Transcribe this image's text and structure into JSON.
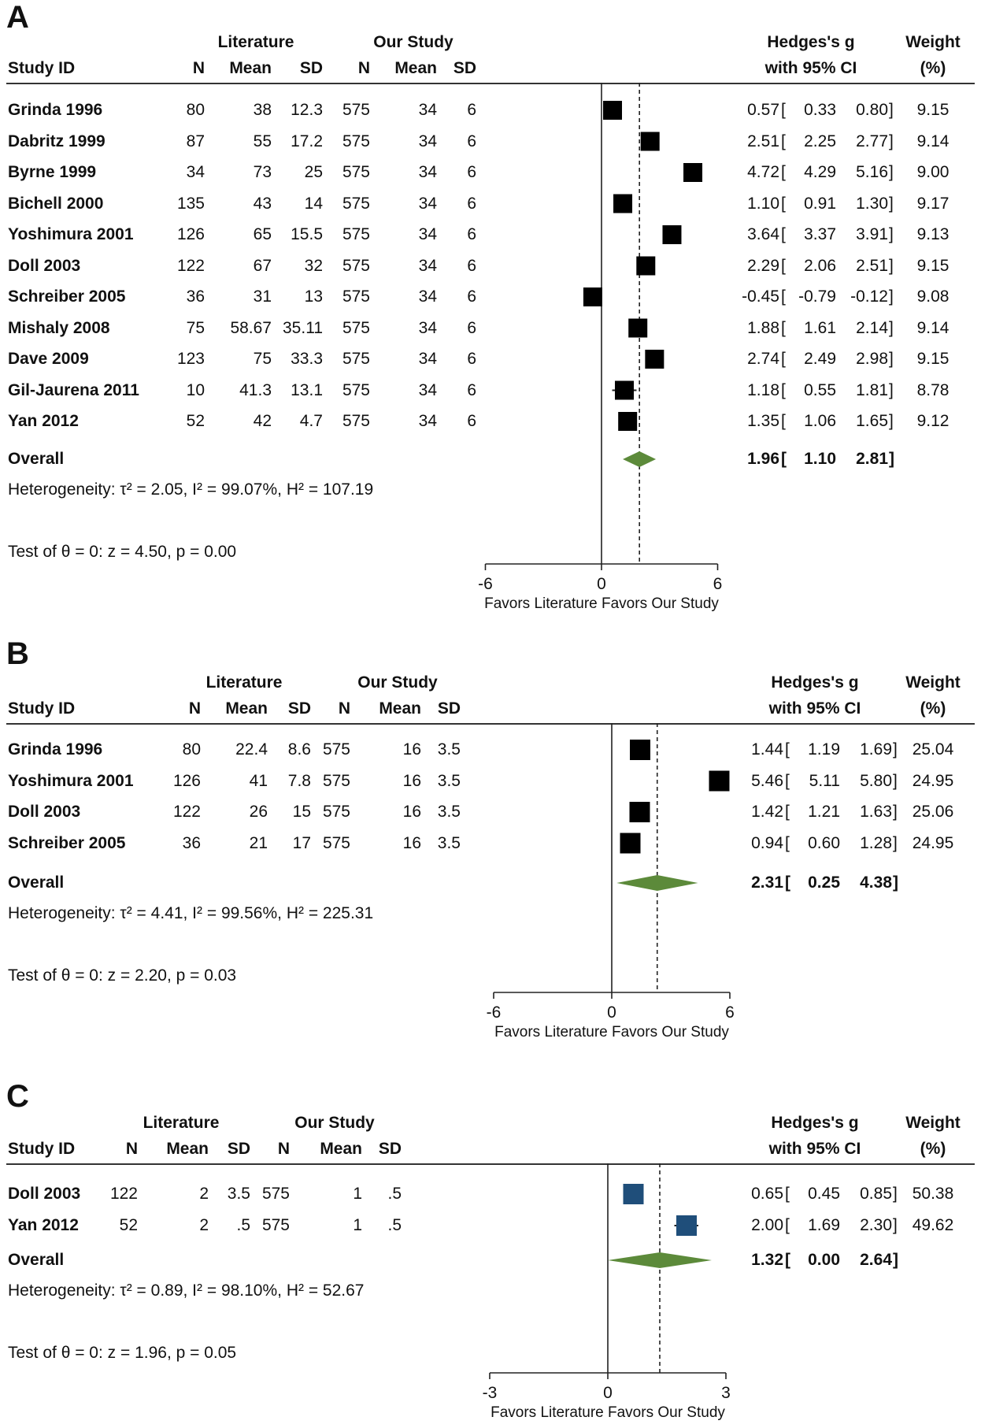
{
  "panels": [
    {
      "label": "A",
      "headers": {
        "study_id": "Study ID",
        "literature": "Literature",
        "our_study": "Our Study",
        "n": "N",
        "mean": "Mean",
        "sd": "SD",
        "effect_line1": "Hedges's g",
        "effect_line2": "with 95% CI",
        "weight_line1": "Weight",
        "weight_line2": "(%)"
      },
      "studies": [
        {
          "id": "Grinda 1996",
          "lit_n": "80",
          "lit_mean": "38",
          "lit_sd": "12.3",
          "our_n": "575",
          "our_mean": "34",
          "our_sd": "6",
          "g": "0.57",
          "lo": "0.33",
          "hi": "0.80",
          "weight": "9.15"
        },
        {
          "id": "Dabritz 1999",
          "lit_n": "87",
          "lit_mean": "55",
          "lit_sd": "17.2",
          "our_n": "575",
          "our_mean": "34",
          "our_sd": "6",
          "g": "2.51",
          "lo": "2.25",
          "hi": "2.77",
          "weight": "9.14"
        },
        {
          "id": "Byrne 1999",
          "lit_n": "34",
          "lit_mean": "73",
          "lit_sd": "25",
          "our_n": "575",
          "our_mean": "34",
          "our_sd": "6",
          "g": "4.72",
          "lo": "4.29",
          "hi": "5.16",
          "weight": "9.00"
        },
        {
          "id": "Bichell 2000",
          "lit_n": "135",
          "lit_mean": "43",
          "lit_sd": "14",
          "our_n": "575",
          "our_mean": "34",
          "our_sd": "6",
          "g": "1.10",
          "lo": "0.91",
          "hi": "1.30",
          "weight": "9.17"
        },
        {
          "id": "Yoshimura 2001",
          "lit_n": "126",
          "lit_mean": "65",
          "lit_sd": "15.5",
          "our_n": "575",
          "our_mean": "34",
          "our_sd": "6",
          "g": "3.64",
          "lo": "3.37",
          "hi": "3.91",
          "weight": "9.13"
        },
        {
          "id": "Doll 2003",
          "lit_n": "122",
          "lit_mean": "67",
          "lit_sd": "32",
          "our_n": "575",
          "our_mean": "34",
          "our_sd": "6",
          "g": "2.29",
          "lo": "2.06",
          "hi": "2.51",
          "weight": "9.15"
        },
        {
          "id": "Schreiber 2005",
          "lit_n": "36",
          "lit_mean": "31",
          "lit_sd": "13",
          "our_n": "575",
          "our_mean": "34",
          "our_sd": "6",
          "g": "-0.45",
          "lo": "-0.79",
          "hi": "-0.12",
          "weight": "9.08"
        },
        {
          "id": "Mishaly 2008",
          "lit_n": "75",
          "lit_mean": "58.67",
          "lit_sd": "35.11",
          "our_n": "575",
          "our_mean": "34",
          "our_sd": "6",
          "g": "1.88",
          "lo": "1.61",
          "hi": "2.14",
          "weight": "9.14"
        },
        {
          "id": "Dave 2009",
          "lit_n": "123",
          "lit_mean": "75",
          "lit_sd": "33.3",
          "our_n": "575",
          "our_mean": "34",
          "our_sd": "6",
          "g": "2.74",
          "lo": "2.49",
          "hi": "2.98",
          "weight": "9.15"
        },
        {
          "id": "Gil-Jaurena 2011",
          "lit_n": "10",
          "lit_mean": "41.3",
          "lit_sd": "13.1",
          "our_n": "575",
          "our_mean": "34",
          "our_sd": "6",
          "g": "1.18",
          "lo": "0.55",
          "hi": "1.81",
          "weight": "8.78"
        },
        {
          "id": "Yan 2012",
          "lit_n": "52",
          "lit_mean": "42",
          "lit_sd": "4.7",
          "our_n": "575",
          "our_mean": "34",
          "our_sd": "6",
          "g": "1.35",
          "lo": "1.06",
          "hi": "1.65",
          "weight": "9.12"
        }
      ],
      "overall": {
        "label": "Overall",
        "g": "1.96",
        "lo": "1.10",
        "hi": "2.81"
      },
      "heterogeneity": "Heterogeneity: τ² = 2.05, I² = 99.07%, H² = 107.19",
      "test": "Test of θ = 0: z = 4.50, p = 0.00",
      "axis": {
        "min": -6,
        "max": 6,
        "ticks": [
          "-6",
          "0",
          "6"
        ],
        "label": "Favors Literature Favors Our Study"
      },
      "marker_color": "#000000"
    },
    {
      "label": "B",
      "headers": {
        "study_id": "Study ID",
        "literature": "Literature",
        "our_study": "Our Study",
        "n": "N",
        "mean": "Mean",
        "sd": "SD",
        "effect_line1": "Hedges's g",
        "effect_line2": "with 95% CI",
        "weight_line1": "Weight",
        "weight_line2": "(%)"
      },
      "studies": [
        {
          "id": "Grinda 1996",
          "lit_n": "80",
          "lit_mean": "22.4",
          "lit_sd": "8.6",
          "our_n": "575",
          "our_mean": "16",
          "our_sd": "3.5",
          "g": "1.44",
          "lo": "1.19",
          "hi": "1.69",
          "weight": "25.04"
        },
        {
          "id": "Yoshimura 2001",
          "lit_n": "126",
          "lit_mean": "41",
          "lit_sd": "7.8",
          "our_n": "575",
          "our_mean": "16",
          "our_sd": "3.5",
          "g": "5.46",
          "lo": "5.11",
          "hi": "5.80",
          "weight": "24.95"
        },
        {
          "id": "Doll 2003",
          "lit_n": "122",
          "lit_mean": "26",
          "lit_sd": "15",
          "our_n": "575",
          "our_mean": "16",
          "our_sd": "3.5",
          "g": "1.42",
          "lo": "1.21",
          "hi": "1.63",
          "weight": "25.06"
        },
        {
          "id": "Schreiber 2005",
          "lit_n": "36",
          "lit_mean": "21",
          "lit_sd": "17",
          "our_n": "575",
          "our_mean": "16",
          "our_sd": "3.5",
          "g": "0.94",
          "lo": "0.60",
          "hi": "1.28",
          "weight": "24.95"
        }
      ],
      "overall": {
        "label": "Overall",
        "g": "2.31",
        "lo": "0.25",
        "hi": "4.38"
      },
      "heterogeneity": "Heterogeneity: τ² = 4.41, I² = 99.56%, H² = 225.31",
      "test": "Test of θ = 0: z = 2.20, p = 0.03",
      "axis": {
        "min": -6,
        "max": 6,
        "ticks": [
          "-6",
          "0",
          "6"
        ],
        "label": "Favors Literature Favors Our Study"
      },
      "marker_color": "#000000"
    },
    {
      "label": "C",
      "headers": {
        "study_id": "Study ID",
        "literature": "Literature",
        "our_study": "Our Study",
        "n": "N",
        "mean": "Mean",
        "sd": "SD",
        "effect_line1": "Hedges's g",
        "effect_line2": "with 95% CI",
        "weight_line1": "Weight",
        "weight_line2": "(%)"
      },
      "studies": [
        {
          "id": "Doll 2003",
          "lit_n": "122",
          "lit_mean": "2",
          "lit_sd": "3.5",
          "our_n": "575",
          "our_mean": "1",
          "our_sd": ".5",
          "g": "0.65",
          "lo": "0.45",
          "hi": "0.85",
          "weight": "50.38"
        },
        {
          "id": "Yan 2012",
          "lit_n": "52",
          "lit_mean": "2",
          "lit_sd": ".5",
          "our_n": "575",
          "our_mean": "1",
          "our_sd": ".5",
          "g": "2.00",
          "lo": "1.69",
          "hi": "2.30",
          "weight": "49.62"
        }
      ],
      "overall": {
        "label": "Overall",
        "g": "1.32",
        "lo": "0.00",
        "hi": "2.64"
      },
      "heterogeneity": "Heterogeneity: τ² = 0.89, I² = 98.10%, H² = 52.67",
      "test": "Test of θ = 0: z = 1.96, p = 0.05",
      "axis": {
        "min": -3,
        "max": 3,
        "ticks": [
          "-3",
          "0",
          "3"
        ],
        "label": "Favors Literature Favors Our Study"
      },
      "marker_color": "#1f4e7a"
    }
  ],
  "colors": {
    "diamond": "#5c8a3a",
    "line": "#333333"
  },
  "chart_data": [
    {
      "type": "forest",
      "title": "A",
      "xlabel": "Favors Literature Favors Our Study",
      "xlim": [
        -6,
        6
      ],
      "categories": [
        "Grinda 1996",
        "Dabritz 1999",
        "Byrne 1999",
        "Bichell 2000",
        "Yoshimura 2001",
        "Doll 2003",
        "Schreiber 2005",
        "Mishaly 2008",
        "Dave 2009",
        "Gil-Jaurena 2011",
        "Yan 2012"
      ],
      "values": [
        0.57,
        2.51,
        4.72,
        1.1,
        3.64,
        2.29,
        -0.45,
        1.88,
        2.74,
        1.18,
        1.35
      ],
      "ci_low": [
        0.33,
        2.25,
        4.29,
        0.91,
        3.37,
        2.06,
        -0.79,
        1.61,
        2.49,
        0.55,
        1.06
      ],
      "ci_high": [
        0.8,
        2.77,
        5.16,
        1.3,
        3.91,
        2.51,
        -0.12,
        2.14,
        2.98,
        1.81,
        1.65
      ],
      "weights": [
        9.15,
        9.14,
        9.0,
        9.17,
        9.13,
        9.15,
        9.08,
        9.14,
        9.15,
        8.78,
        9.12
      ],
      "overall": {
        "value": 1.96,
        "ci_low": 1.1,
        "ci_high": 2.81
      }
    },
    {
      "type": "forest",
      "title": "B",
      "xlabel": "Favors Literature Favors Our Study",
      "xlim": [
        -6,
        6
      ],
      "categories": [
        "Grinda 1996",
        "Yoshimura 2001",
        "Doll 2003",
        "Schreiber 2005"
      ],
      "values": [
        1.44,
        5.46,
        1.42,
        0.94
      ],
      "ci_low": [
        1.19,
        5.11,
        1.21,
        0.6
      ],
      "ci_high": [
        1.69,
        5.8,
        1.63,
        1.28
      ],
      "weights": [
        25.04,
        24.95,
        25.06,
        24.95
      ],
      "overall": {
        "value": 2.31,
        "ci_low": 0.25,
        "ci_high": 4.38
      }
    },
    {
      "type": "forest",
      "title": "C",
      "xlabel": "Favors Literature Favors Our Study",
      "xlim": [
        -3,
        3
      ],
      "categories": [
        "Doll 2003",
        "Yan 2012"
      ],
      "values": [
        0.65,
        2.0
      ],
      "ci_low": [
        0.45,
        1.69
      ],
      "ci_high": [
        0.85,
        2.3
      ],
      "weights": [
        50.38,
        49.62
      ],
      "overall": {
        "value": 1.32,
        "ci_low": 0.0,
        "ci_high": 2.64
      }
    }
  ]
}
